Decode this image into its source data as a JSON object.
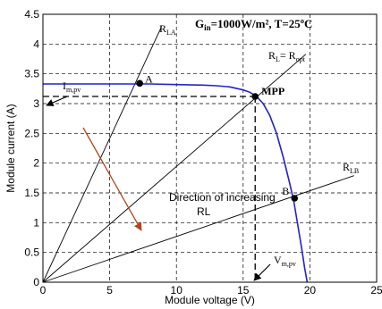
{
  "chart_data": {
    "type": "line",
    "xlabel": "Module voltage (V)",
    "ylabel": "Module current (A)",
    "xlim": [
      0,
      25
    ],
    "ylim": [
      0,
      4.5
    ],
    "xticks": [
      "0",
      "5",
      "10",
      "15",
      "20",
      "25"
    ],
    "yticks": [
      "0",
      "0.5",
      "1",
      "1.5",
      "2",
      "2.5",
      "3",
      "3.5",
      "4",
      "4.5"
    ],
    "grid": true,
    "condition_label": "G",
    "condition_label_sub": "in",
    "condition_label_rest": "=1000W/m², T=25ºC",
    "iv_curve": {
      "color": "#2222cc",
      "x": [
        0,
        4,
        8,
        10,
        12,
        13,
        14,
        15,
        15.5,
        16,
        16.5,
        17,
        17.5,
        18,
        18.5,
        18.8,
        19.1,
        19.4,
        19.6,
        19.8
      ],
      "y": [
        3.33,
        3.33,
        3.33,
        3.32,
        3.31,
        3.3,
        3.28,
        3.23,
        3.19,
        3.12,
        3.0,
        2.8,
        2.5,
        2.1,
        1.65,
        1.35,
        0.95,
        0.55,
        0.25,
        0.0
      ]
    },
    "load_lines": [
      {
        "label": "R",
        "label_sub": "LA",
        "x": [
          0,
          8.9
        ],
        "y": [
          0,
          4.3
        ]
      },
      {
        "label": "R",
        "label_sub": "L",
        "label_rest": "= R",
        "label_sub2": "opt",
        "x": [
          0,
          19.7
        ],
        "y": [
          0,
          3.83
        ]
      },
      {
        "label": "R",
        "label_sub": "LB",
        "x": [
          0,
          23.3
        ],
        "y": [
          0,
          1.79
        ]
      }
    ],
    "points": [
      {
        "label": "A",
        "x": 7.25,
        "y": 3.34
      },
      {
        "label": "MPP",
        "x": 15.9,
        "y": 3.12
      },
      {
        "label": "B",
        "x": 18.85,
        "y": 1.41
      }
    ],
    "mpp_dashed": {
      "x": 15.9,
      "y": 3.12
    },
    "annotations": {
      "impv_label": "I",
      "impv_sub": "m,pv",
      "vmpv_label": "V",
      "vmpv_sub": "m,pv",
      "direction_text_1": "Direction of increasing",
      "direction_text_2": "RL",
      "arrow_color": "#b5451b"
    }
  }
}
